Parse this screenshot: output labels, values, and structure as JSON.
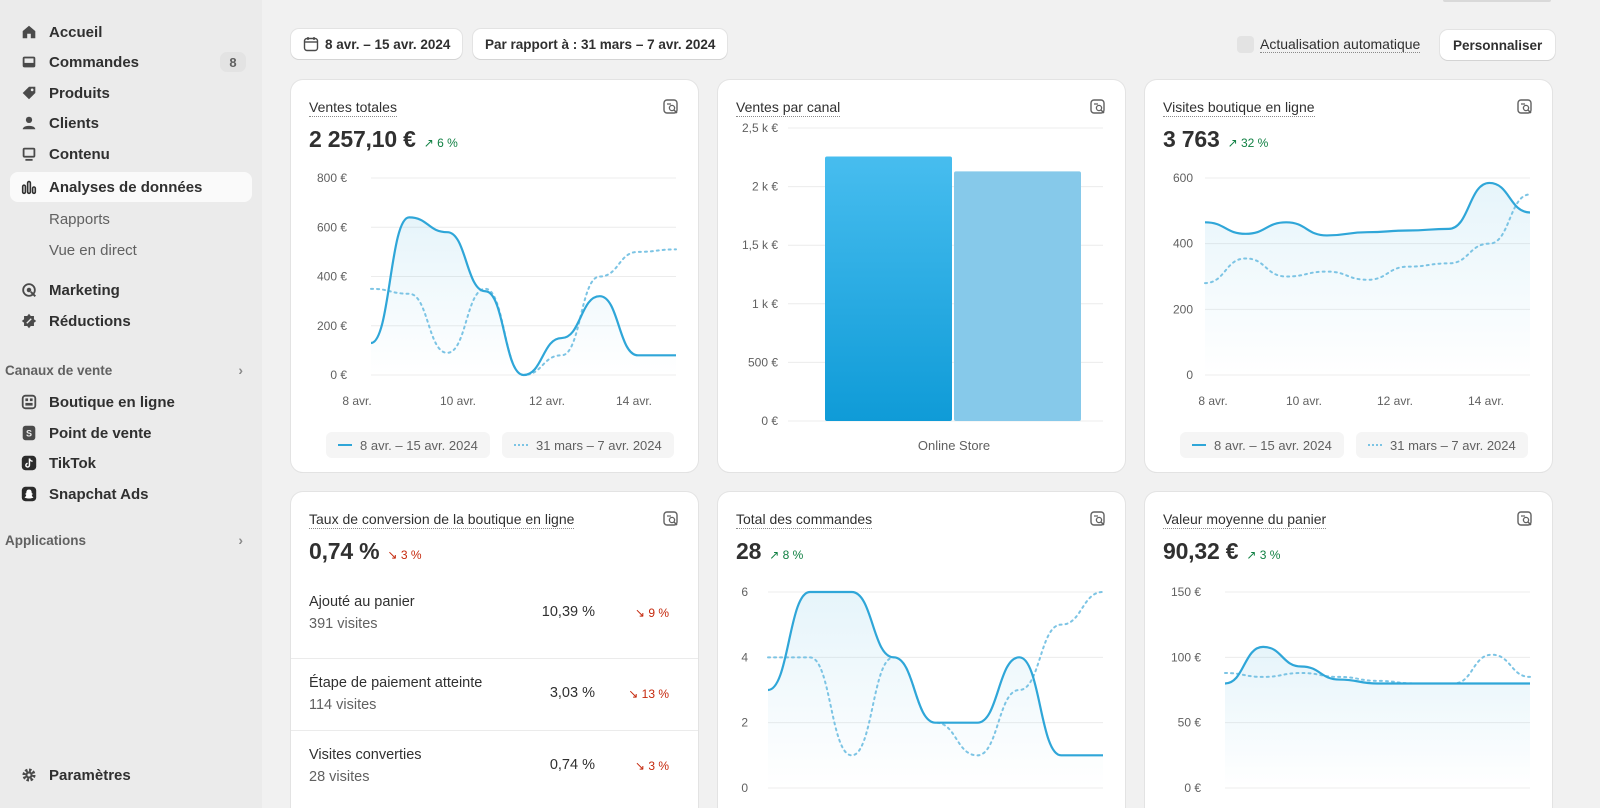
{
  "sidebar": {
    "items": [
      {
        "label": "Accueil",
        "icon": "home-icon"
      },
      {
        "label": "Commandes",
        "icon": "inbox-icon",
        "badge": "8"
      },
      {
        "label": "Produits",
        "icon": "tag-icon"
      },
      {
        "label": "Clients",
        "icon": "person-icon"
      },
      {
        "label": "Contenu",
        "icon": "image-icon"
      },
      {
        "label": "Analyses de données",
        "icon": "bar-chart-icon"
      },
      {
        "label": "Marketing",
        "icon": "target-icon"
      },
      {
        "label": "Réductions",
        "icon": "discount-icon"
      }
    ],
    "analytics_sub": [
      "Rapports",
      "Vue en direct"
    ],
    "sales_channels_heading": "Canaux de vente",
    "sales_channels": [
      {
        "label": "Boutique en ligne",
        "icon": "store-icon"
      },
      {
        "label": "Point de vente",
        "icon": "pos-icon"
      },
      {
        "label": "TikTok",
        "icon": "tiktok-icon"
      },
      {
        "label": "Snapchat Ads",
        "icon": "snapchat-icon"
      }
    ],
    "applications_heading": "Applications",
    "settings_label": "Paramètres"
  },
  "toolbar": {
    "date_range": "8 avr. – 15 avr. 2024",
    "compare_range": "Par rapport à : 31 mars – 7 avr. 2024",
    "auto_refresh_label": "Actualisation automatique",
    "customize_label": "Personnaliser"
  },
  "colors": {
    "primary_series": "#2fa6d8",
    "comparison_series": "#7cc4e4",
    "increase": "#108043",
    "decrease": "#c5280c"
  },
  "cards": {
    "total_sales": {
      "title": "Ventes totales",
      "value": "2 257,10 €",
      "change": "6 %",
      "direction": "up"
    },
    "sales_by_channel": {
      "title": "Ventes par canal"
    },
    "online_visits": {
      "title": "Visites boutique en ligne",
      "value": "3 763",
      "change": "32 %",
      "direction": "up"
    },
    "conversion": {
      "title": "Taux de conversion de la boutique en ligne",
      "value": "0,74 %",
      "change": "3 %",
      "direction": "down",
      "rows": [
        {
          "label": "Ajouté au panier",
          "visits": "391 visites",
          "pct": "10,39 %",
          "change": "9 %"
        },
        {
          "label": "Étape de paiement atteinte",
          "visits": "114 visites",
          "pct": "3,03 %",
          "change": "13 %"
        },
        {
          "label": "Visites converties",
          "visits": "28 visites",
          "pct": "0,74 %",
          "change": "3 %"
        }
      ]
    },
    "total_orders": {
      "title": "Total des commandes",
      "value": "28",
      "change": "8 %",
      "direction": "up"
    },
    "avg_order_value": {
      "title": "Valeur moyenne du panier",
      "value": "90,32 €",
      "change": "3 %",
      "direction": "up"
    }
  },
  "legend": {
    "current": "8 avr. – 15 avr. 2024",
    "previous": "31 mars – 7 avr. 2024"
  },
  "chart_data": [
    {
      "type": "line",
      "title": "Ventes totales",
      "x_tick_labels": [
        "8 avr.",
        "10 avr.",
        "12 avr.",
        "14 avr."
      ],
      "y_tick_labels": [
        "800 €",
        "600 €",
        "400 €",
        "200 €",
        "0 €"
      ],
      "ylim": [
        0,
        800
      ],
      "x": [
        0,
        1,
        2,
        3,
        4,
        5,
        6,
        7,
        8
      ],
      "series": [
        {
          "name": "8 avr. – 15 avr. 2024",
          "values": [
            130,
            640,
            580,
            340,
            0,
            150,
            320,
            80,
            80
          ]
        },
        {
          "name": "31 mars – 7 avr. 2024",
          "values": [
            350,
            330,
            90,
            350,
            0,
            80,
            400,
            500,
            510
          ]
        }
      ]
    },
    {
      "type": "bar",
      "title": "Ventes par canal",
      "categories": [
        "Online Store"
      ],
      "y_tick_labels": [
        "2,5 k €",
        "2 k €",
        "1,5 k €",
        "1 k €",
        "500 €",
        "0 €"
      ],
      "ylim": [
        0,
        2500
      ],
      "series": [
        {
          "name": "8 avr. – 15 avr. 2024",
          "values": [
            2257.1
          ]
        },
        {
          "name": "31 mars – 7 avr. 2024",
          "values": [
            2130
          ]
        }
      ]
    },
    {
      "type": "line",
      "title": "Visites boutique en ligne",
      "x_tick_labels": [
        "8 avr.",
        "10 avr.",
        "12 avr.",
        "14 avr."
      ],
      "y_tick_labels": [
        "600",
        "400",
        "200",
        "0"
      ],
      "ylim": [
        0,
        600
      ],
      "x": [
        0,
        1,
        2,
        3,
        4,
        5,
        6,
        7,
        8
      ],
      "series": [
        {
          "name": "8 avr. – 15 avr. 2024",
          "values": [
            465,
            430,
            465,
            425,
            435,
            440,
            445,
            585,
            495
          ]
        },
        {
          "name": "31 mars – 7 avr. 2024",
          "values": [
            280,
            355,
            300,
            315,
            290,
            330,
            340,
            400,
            550
          ]
        }
      ]
    },
    {
      "type": "line",
      "title": "Total des commandes",
      "y_tick_labels": [
        "6",
        "4",
        "2",
        "0"
      ],
      "ylim": [
        0,
        6
      ],
      "x": [
        0,
        1,
        2,
        3,
        4,
        5,
        6,
        7,
        8
      ],
      "series": [
        {
          "name": "8 avr. – 15 avr. 2024",
          "values": [
            3,
            6,
            6,
            4,
            2,
            2,
            4,
            1,
            1
          ]
        },
        {
          "name": "31 mars – 7 avr. 2024",
          "values": [
            4,
            4,
            1,
            4,
            2,
            1,
            3,
            5,
            6
          ]
        }
      ]
    },
    {
      "type": "line",
      "title": "Valeur moyenne du panier",
      "y_tick_labels": [
        "150 €",
        "100 €",
        "50 €",
        "0 €"
      ],
      "ylim": [
        0,
        150
      ],
      "x": [
        0,
        1,
        2,
        3,
        4,
        5,
        6,
        7,
        8
      ],
      "series": [
        {
          "name": "8 avr. – 15 avr. 2024",
          "values": [
            80,
            108,
            93,
            83,
            80,
            80,
            80,
            80,
            80
          ]
        },
        {
          "name": "31 mars – 7 avr. 2024",
          "values": [
            88,
            85,
            88,
            85,
            82,
            80,
            80,
            102,
            85
          ]
        }
      ]
    }
  ]
}
